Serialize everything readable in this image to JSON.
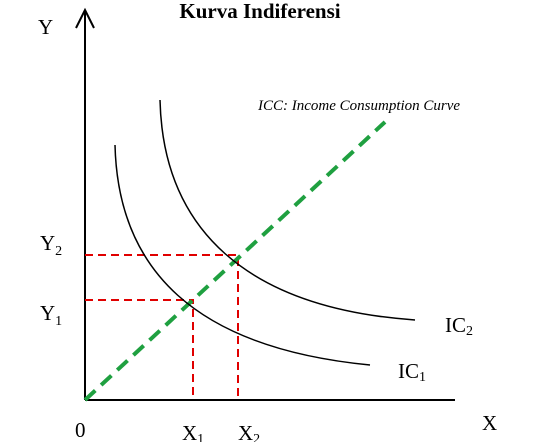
{
  "title": "Kurva Indiferensi",
  "axes": {
    "y": "Y",
    "x": "X",
    "origin": "0"
  },
  "y_labels": [
    {
      "base": "Y",
      "sub": "2"
    },
    {
      "base": "Y",
      "sub": "1"
    }
  ],
  "x_labels": [
    {
      "base": "X",
      "sub": "1"
    },
    {
      "base": "X",
      "sub": "2"
    }
  ],
  "curves": [
    {
      "base": "IC",
      "sub": "2"
    },
    {
      "base": "IC",
      "sub": "1"
    }
  ],
  "icc_label": "ICC: Income Consumption Curve"
}
